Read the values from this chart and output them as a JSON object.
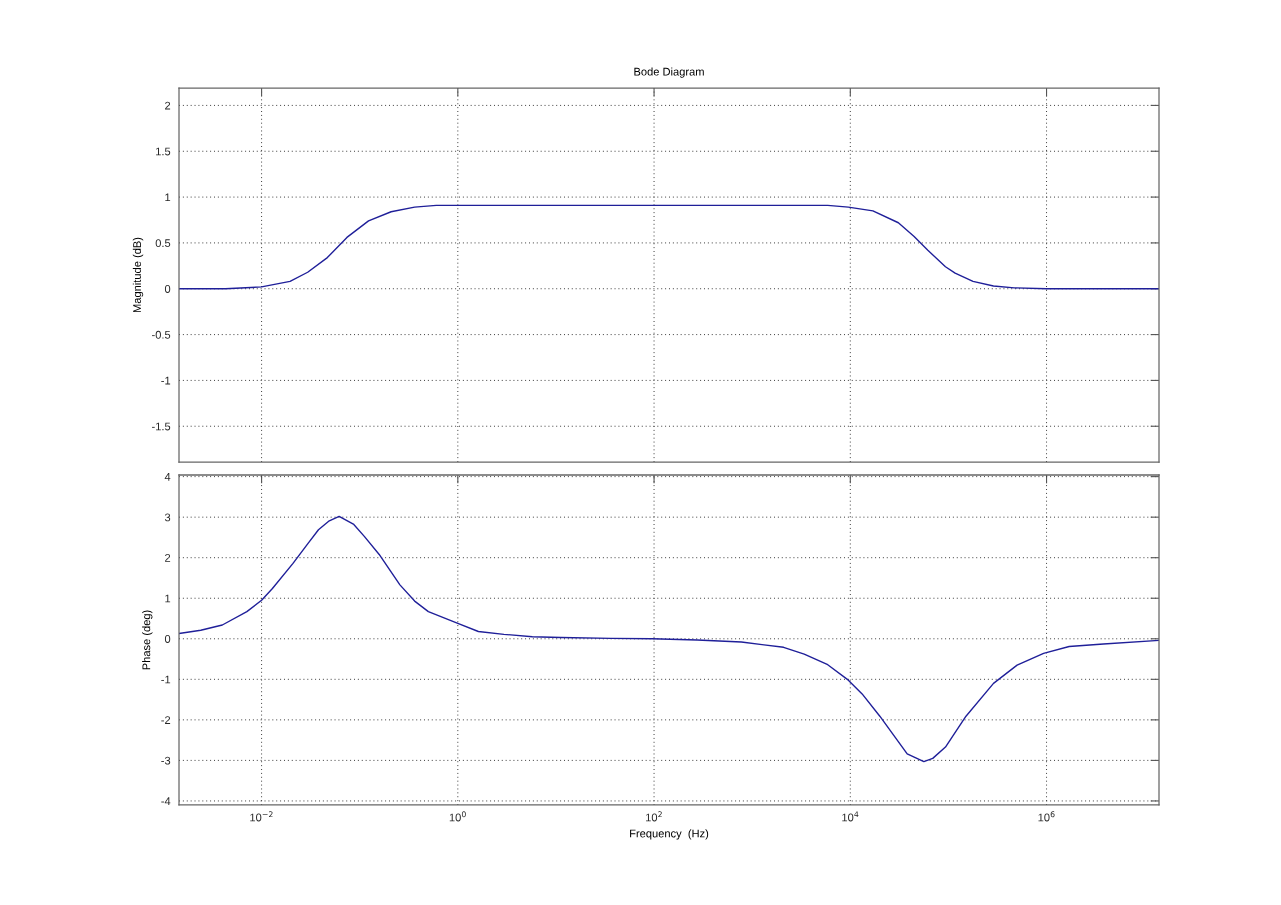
{
  "chart_data": [
    {
      "type": "line",
      "title": "Bode Diagram",
      "ylabel": "Magnitude (dB)",
      "log": "x",
      "grid": true,
      "tick_labels": "y",
      "xlim": [
        0.00144,
        14000000
      ],
      "xticks": [
        {
          "value": 0.01,
          "label": null
        },
        {
          "value": 1,
          "label": null
        },
        {
          "value": 100,
          "label": null
        },
        {
          "value": 10000,
          "label": null
        },
        {
          "value": 1000000,
          "label": null
        }
      ],
      "ylim": [
        -1.89,
        2.19
      ],
      "yticks": [
        -1.5,
        -1,
        -0.5,
        0,
        0.5,
        1,
        1.5,
        2
      ],
      "x": [
        0.00144,
        0.00427,
        0.01,
        0.0195,
        0.0295,
        0.0468,
        0.0741,
        0.123,
        0.209,
        0.363,
        0.603,
        5890,
        9550,
        17000,
        30900,
        44700,
        61700,
        93300,
        117000,
        178000,
        288000,
        468000,
        1000000,
        14000000
      ],
      "series": [
        {
          "color": "#1f1f99",
          "line_style": "solid",
          "values": [
            0,
            0,
            0.02,
            0.08,
            0.18,
            0.34,
            0.56,
            0.74,
            0.84,
            0.89,
            0.91,
            0.91,
            0.89,
            0.85,
            0.72,
            0.57,
            0.42,
            0.24,
            0.17,
            0.08,
            0.03,
            0.01,
            0,
            0
          ]
        }
      ]
    },
    {
      "type": "line",
      "xlabel": "Frequency  (Hz)",
      "ylabel": "Phase (deg)",
      "log": "x",
      "grid": true,
      "xlim": [
        0.00144,
        14000000
      ],
      "xticks": [
        {
          "value": 0.01,
          "label": "10$^{−2}$"
        },
        {
          "value": 1,
          "label": "10$^{0}$"
        },
        {
          "value": 100,
          "label": "10$^{2}$"
        },
        {
          "value": 10000,
          "label": "10$^{4}$"
        },
        {
          "value": 1000000,
          "label": "10$^{6}$"
        }
      ],
      "ylim": [
        -4.1,
        4.04
      ],
      "yticks": [
        -4,
        -3,
        -2,
        -1,
        0,
        1,
        2,
        3,
        4
      ],
      "x": [
        0.00144,
        0.0024,
        0.00398,
        0.00708,
        0.01,
        0.0129,
        0.0209,
        0.0295,
        0.038,
        0.049,
        0.0617,
        0.0871,
        0.112,
        0.158,
        0.257,
        0.363,
        0.501,
        1,
        1.62,
        2.95,
        5.75,
        11.2,
        36.3,
        95.5,
        275,
        776,
        2090,
        3390,
        5890,
        9550,
        13200,
        20000,
        27500,
        38000,
        56200,
        69200,
        93300,
        151000,
        288000,
        501000,
        933000,
        1700000,
        3800000,
        14000000
      ],
      "series": [
        {
          "color": "#1f1f99",
          "line_style": "solid",
          "values": [
            0.13,
            0.21,
            0.34,
            0.67,
            0.95,
            1.24,
            1.86,
            2.34,
            2.69,
            2.91,
            3.02,
            2.82,
            2.52,
            2.08,
            1.33,
            0.93,
            0.67,
            0.38,
            0.18,
            0.11,
            0.05,
            0.03,
            0.01,
            0,
            -0.03,
            -0.08,
            -0.21,
            -0.38,
            -0.64,
            -1.02,
            -1.36,
            -1.91,
            -2.37,
            -2.84,
            -3.03,
            -2.95,
            -2.67,
            -1.91,
            -1.1,
            -0.65,
            -0.36,
            -0.19,
            -0.13,
            -0.04
          ]
        }
      ]
    }
  ]
}
